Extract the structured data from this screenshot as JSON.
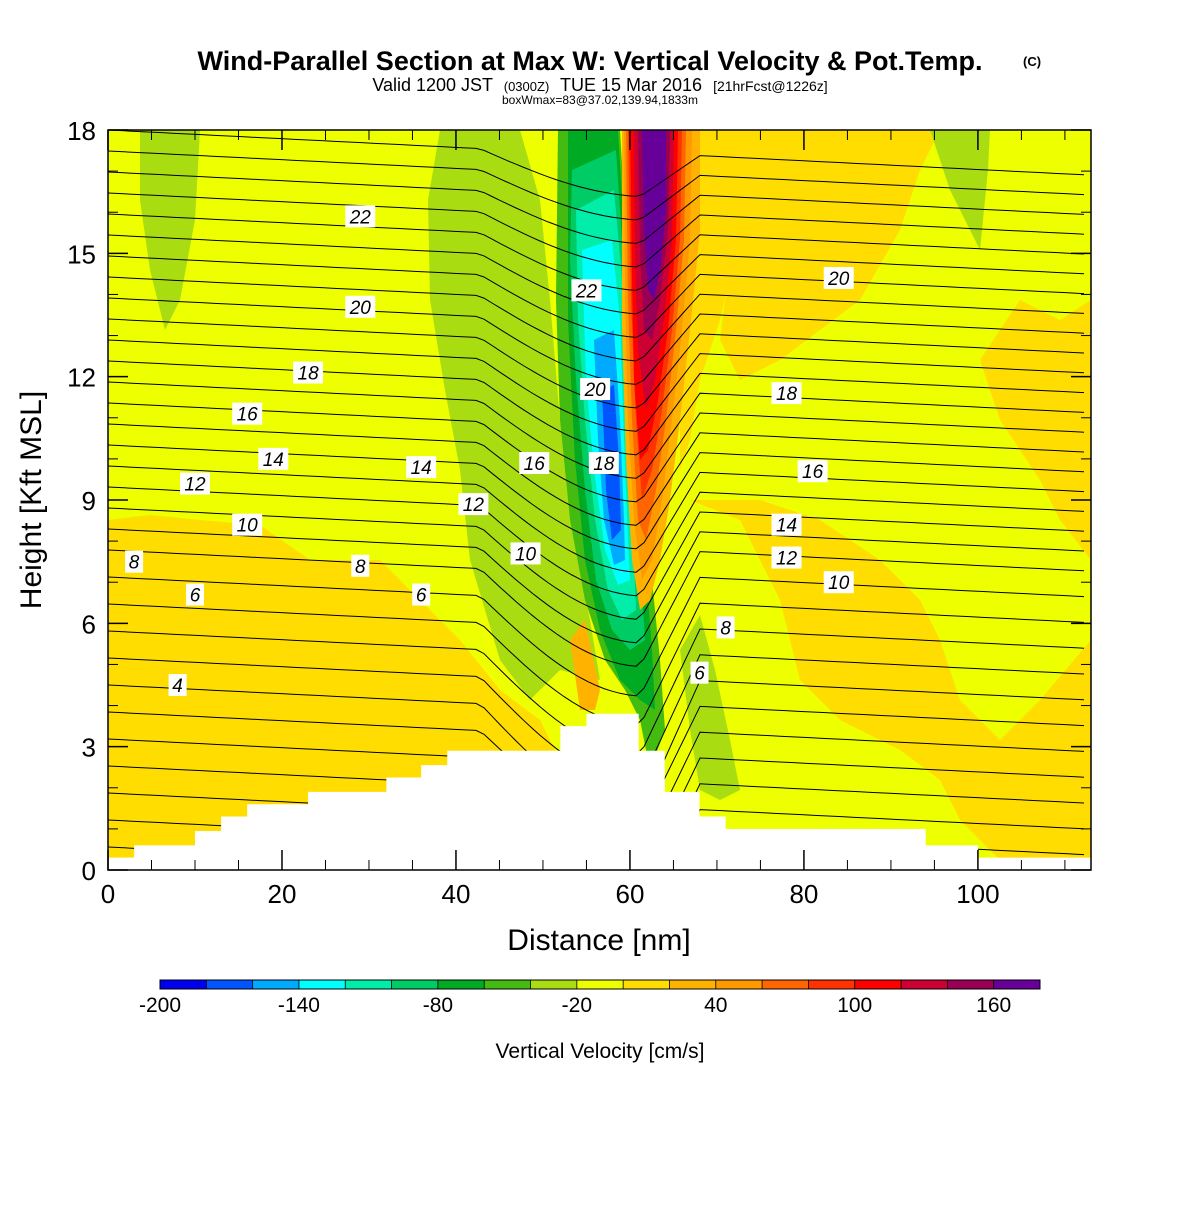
{
  "chart_data": {
    "type": "heatmap",
    "title": "Wind-Parallel Section at Max W: Vertical Velocity & Pot.Temp.",
    "title_mark": "(C)",
    "subtitle_parts": [
      "Valid 1200 JST",
      "(0300Z)",
      "TUE 15 Mar 2016",
      "[21hrFcst@1226z]"
    ],
    "subtitle2": "boxWmax=83@37.02,139.94,1833m",
    "xlabel": "Distance [nm]",
    "ylabel": "Height [Kft MSL]",
    "xlim": [
      0,
      113
    ],
    "ylim": [
      0,
      18
    ],
    "x_ticks": [
      "0",
      "20",
      "40",
      "60",
      "80",
      "100"
    ],
    "y_ticks": [
      "0",
      "3",
      "6",
      "9",
      "12",
      "15",
      "18"
    ],
    "colorbar": {
      "label": "Vertical Velocity [cm/s]",
      "tick_labels": [
        "-200",
        "-140",
        "-80",
        "-20",
        "40",
        "100",
        "160"
      ],
      "levels_min": -200,
      "level_step": 20,
      "colors": [
        "#0000ee",
        "#0055ff",
        "#00aaff",
        "#00ffff",
        "#00eeaa",
        "#00cc66",
        "#00aa22",
        "#44bb11",
        "#aadd11",
        "#eeff00",
        "#ffdd00",
        "#ffb300",
        "#ff9900",
        "#ff6600",
        "#ff3300",
        "#ff0000",
        "#cc0033",
        "#990055",
        "#660099"
      ]
    },
    "terrain_profile": [
      [
        0,
        0.3
      ],
      [
        3,
        0.3
      ],
      [
        3,
        0.6
      ],
      [
        10,
        0.6
      ],
      [
        10,
        0.95
      ],
      [
        13,
        0.95
      ],
      [
        13,
        1.3
      ],
      [
        16,
        1.3
      ],
      [
        16,
        1.6
      ],
      [
        23,
        1.6
      ],
      [
        23,
        1.9
      ],
      [
        32,
        1.9
      ],
      [
        32,
        2.25
      ],
      [
        36,
        2.25
      ],
      [
        36,
        2.55
      ],
      [
        39,
        2.55
      ],
      [
        39,
        2.9
      ],
      [
        52,
        2.9
      ],
      [
        52,
        3.5
      ],
      [
        55,
        3.5
      ],
      [
        55,
        3.8
      ],
      [
        61,
        3.8
      ],
      [
        61,
        2.9
      ],
      [
        64,
        2.9
      ],
      [
        64,
        1.9
      ],
      [
        68,
        1.9
      ],
      [
        68,
        1.3
      ],
      [
        71,
        1.3
      ],
      [
        71,
        1.0
      ],
      [
        94,
        1.0
      ],
      [
        94,
        0.6
      ],
      [
        100,
        0.6
      ],
      [
        100,
        0.3
      ],
      [
        113,
        0.3
      ]
    ],
    "updraft_core_cm_s": 160,
    "downdraft_core_cm_s": -140,
    "theta_contour_labels": [
      {
        "text": "22",
        "x": 29,
        "y": 15.9
      },
      {
        "text": "20",
        "x": 29,
        "y": 13.7
      },
      {
        "text": "18",
        "x": 23,
        "y": 12.1
      },
      {
        "text": "16",
        "x": 16,
        "y": 11.1
      },
      {
        "text": "14",
        "x": 19,
        "y": 10.0
      },
      {
        "text": "12",
        "x": 10,
        "y": 9.4
      },
      {
        "text": "10",
        "x": 16,
        "y": 8.4
      },
      {
        "text": "8",
        "x": 3,
        "y": 7.5
      },
      {
        "text": "6",
        "x": 10,
        "y": 6.7
      },
      {
        "text": "4",
        "x": 8,
        "y": 4.5
      },
      {
        "text": "14",
        "x": 36,
        "y": 9.8
      },
      {
        "text": "8",
        "x": 29,
        "y": 7.4
      },
      {
        "text": "6",
        "x": 36,
        "y": 6.7
      },
      {
        "text": "16",
        "x": 49,
        "y": 9.9
      },
      {
        "text": "12",
        "x": 42,
        "y": 8.9
      },
      {
        "text": "10",
        "x": 48,
        "y": 7.7
      },
      {
        "text": "22",
        "x": 55,
        "y": 14.1
      },
      {
        "text": "20",
        "x": 56,
        "y": 11.7
      },
      {
        "text": "18",
        "x": 57,
        "y": 9.9
      },
      {
        "text": "20",
        "x": 84,
        "y": 14.4
      },
      {
        "text": "18",
        "x": 78,
        "y": 11.6
      },
      {
        "text": "16",
        "x": 81,
        "y": 9.7
      },
      {
        "text": "14",
        "x": 78,
        "y": 8.4
      },
      {
        "text": "12",
        "x": 78,
        "y": 7.6
      },
      {
        "text": "10",
        "x": 84,
        "y": 7.0
      },
      {
        "text": "8",
        "x": 71,
        "y": 5.9
      },
      {
        "text": "6",
        "x": 68,
        "y": 4.8
      }
    ]
  }
}
